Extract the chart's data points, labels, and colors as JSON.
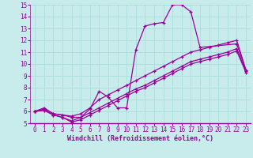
{
  "xlabel": "Windchill (Refroidissement éolien,°C)",
  "background_color": "#c8ecec",
  "line_color": "#990099",
  "xlim": [
    -0.5,
    23.5
  ],
  "ylim": [
    5,
    15
  ],
  "xticks": [
    0,
    1,
    2,
    3,
    4,
    5,
    6,
    7,
    8,
    9,
    10,
    11,
    12,
    13,
    14,
    15,
    16,
    17,
    18,
    19,
    20,
    21,
    22,
    23
  ],
  "yticks": [
    5,
    6,
    7,
    8,
    9,
    10,
    11,
    12,
    13,
    14,
    15
  ],
  "grid_color": "#aadddd",
  "series": [
    {
      "x": [
        0,
        1,
        2,
        3,
        4,
        5,
        6,
        7,
        8,
        9,
        10,
        11,
        12,
        13,
        14,
        15,
        16,
        17,
        18,
        22,
        23
      ],
      "y": [
        6.0,
        6.3,
        5.8,
        5.7,
        5.5,
        5.5,
        6.2,
        7.7,
        7.2,
        6.3,
        6.3,
        11.2,
        13.2,
        13.4,
        13.5,
        15.0,
        15.0,
        14.4,
        11.4,
        11.7,
        9.5
      ]
    },
    {
      "x": [
        0,
        1,
        2,
        3,
        4,
        5,
        6,
        7,
        8,
        9,
        10,
        11,
        12,
        13,
        14,
        15,
        16,
        17,
        18,
        19,
        20,
        21,
        22,
        23
      ],
      "y": [
        6.0,
        6.1,
        5.7,
        5.5,
        5.1,
        5.3,
        5.7,
        6.1,
        6.5,
        6.9,
        7.3,
        7.7,
        8.0,
        8.4,
        8.8,
        9.2,
        9.6,
        10.0,
        10.2,
        10.4,
        10.6,
        10.8,
        11.1,
        9.3
      ]
    },
    {
      "x": [
        0,
        1,
        2,
        3,
        4,
        5,
        6,
        7,
        8,
        9,
        10,
        11,
        12,
        13,
        14,
        15,
        16,
        17,
        18,
        19,
        20,
        21,
        22,
        23
      ],
      "y": [
        6.0,
        6.1,
        5.7,
        5.5,
        5.2,
        5.5,
        5.9,
        6.3,
        6.7,
        7.1,
        7.5,
        7.9,
        8.2,
        8.6,
        9.0,
        9.4,
        9.8,
        10.2,
        10.4,
        10.6,
        10.8,
        11.0,
        11.3,
        9.4
      ]
    },
    {
      "x": [
        0,
        1,
        2,
        3,
        4,
        5,
        6,
        7,
        8,
        9,
        10,
        11,
        12,
        13,
        14,
        15,
        16,
        17,
        18,
        19,
        20,
        21,
        22,
        23
      ],
      "y": [
        6.0,
        6.2,
        5.8,
        5.7,
        5.6,
        5.8,
        6.3,
        7.0,
        7.4,
        7.8,
        8.2,
        8.6,
        9.0,
        9.4,
        9.8,
        10.2,
        10.6,
        11.0,
        11.2,
        11.4,
        11.6,
        11.8,
        12.0,
        9.5
      ]
    }
  ],
  "marker": "+",
  "markersize": 3,
  "linewidth": 0.9,
  "xlabel_fontsize": 6,
  "tick_fontsize": 5.5,
  "font_family": "monospace"
}
